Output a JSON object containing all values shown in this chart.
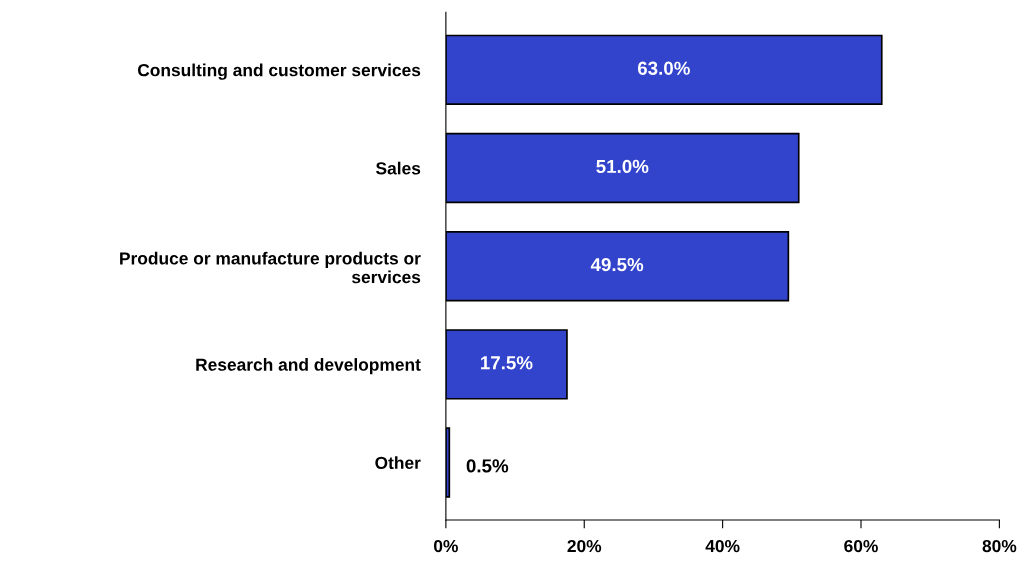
{
  "chart_data": {
    "type": "bar",
    "orientation": "horizontal",
    "categories": [
      "Consulting and customer services",
      "Sales",
      "Produce or manufacture products or\nservices",
      "Research and development",
      "Other"
    ],
    "values": [
      63.0,
      51.0,
      49.5,
      17.5,
      0.5
    ],
    "value_labels": [
      "63.0%",
      "51.0%",
      "49.5%",
      "17.5%",
      "0.5%"
    ],
    "color": "#3344cc",
    "xlim": [
      0,
      80
    ],
    "xticks": [
      {
        "value": 0,
        "label": "0%"
      },
      {
        "value": 20,
        "label": "20%"
      },
      {
        "value": 40,
        "label": "40%"
      },
      {
        "value": 60,
        "label": "60%"
      },
      {
        "value": 80,
        "label": "80%"
      }
    ],
    "grid": false,
    "legend": false
  }
}
